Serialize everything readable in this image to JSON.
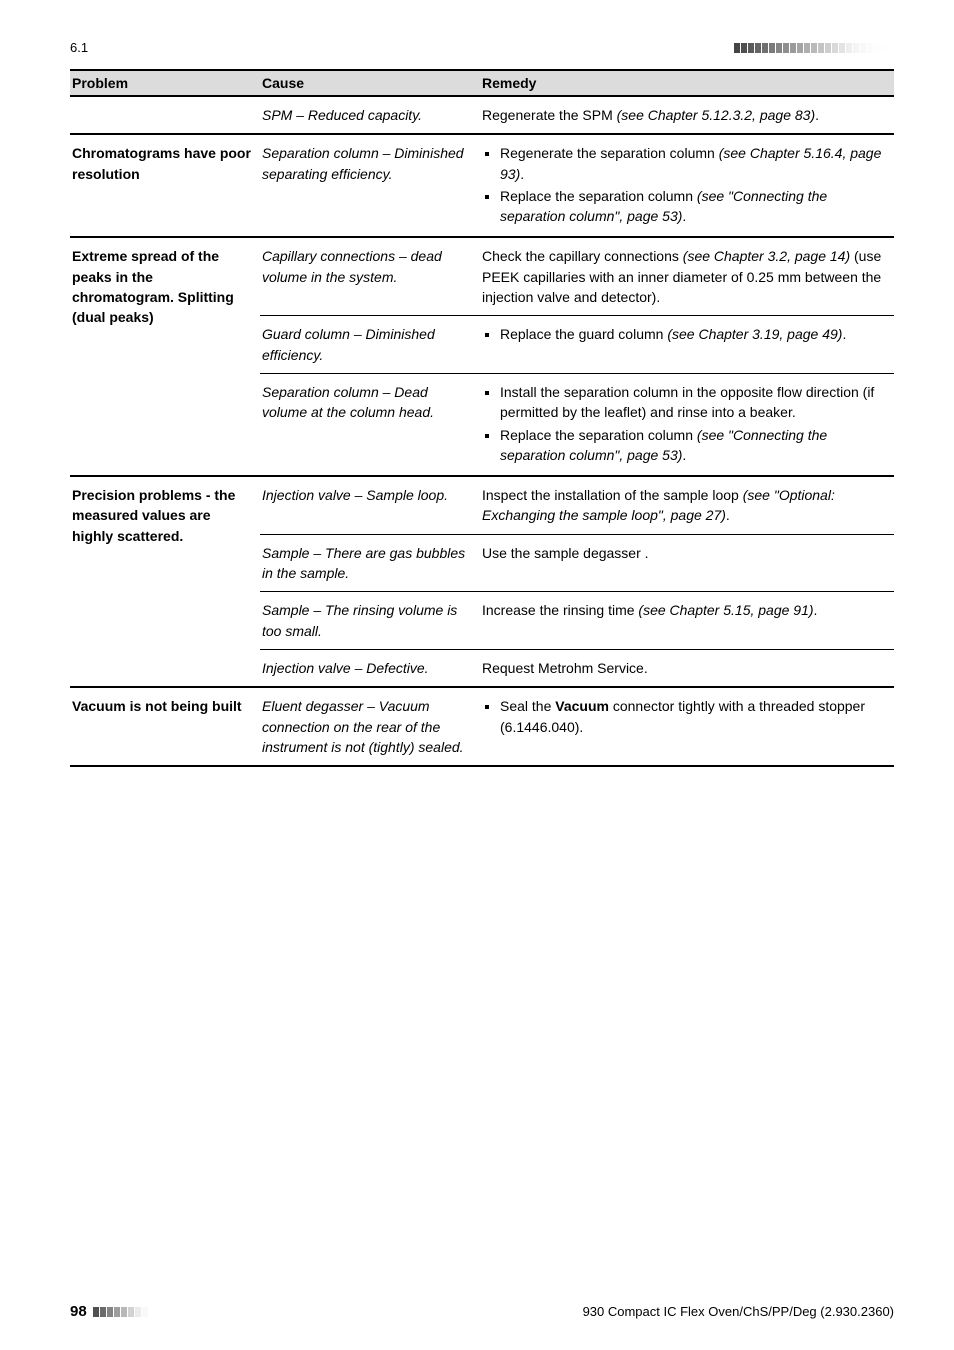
{
  "header": {
    "section": "6.1"
  },
  "table": {
    "headers": [
      "Problem",
      "Cause",
      "Remedy"
    ],
    "groups": [
      {
        "problem": "",
        "rows": [
          {
            "cause": {
              "prefix": "SPM",
              "tail": " – Reduced capacity."
            },
            "remedy": {
              "text": "Regenerate the SPM ",
              "italic": "(see Chapter 5.12.3.2, page 83)",
              "tail": "."
            }
          }
        ]
      },
      {
        "problem": "Chromatograms have poor resolution",
        "rows": [
          {
            "cause": {
              "prefix": "Separation column",
              "tail": " – Diminished separating efficiency."
            },
            "remedy_list": [
              {
                "text": "Regenerate the separation column ",
                "italic": "(see Chapter 5.16.4, page 93)",
                "tail": "."
              },
              {
                "text": "Replace the separation column ",
                "italic": "(see \"Connecting the separation column\", page 53)",
                "tail": "."
              }
            ]
          }
        ]
      },
      {
        "problem": "Extreme spread of the peaks in the chromatogram. Splitting (dual peaks)",
        "rows": [
          {
            "cause": {
              "prefix": "Capillary connections",
              "tail": " – dead volume in the system."
            },
            "remedy": {
              "text": "Check the capillary connections ",
              "italic": "(see Chapter 3.2, page 14)",
              "tail": " (use PEEK capillaries with an inner diameter of 0.25 mm between the injection valve and detector)."
            }
          },
          {
            "sub": true,
            "cause": {
              "prefix": "Guard column",
              "tail": " – Diminished efficiency."
            },
            "remedy_list": [
              {
                "text": "Replace the guard column ",
                "italic": "(see Chapter 3.19, page 49)",
                "tail": "."
              }
            ]
          },
          {
            "sub": true,
            "cause": {
              "prefix": "Separation column",
              "tail": " – Dead volume at the column head."
            },
            "remedy_list": [
              {
                "text": "Install the separation column in the opposite flow direction (if permitted by the leaflet) and rinse into a beaker.",
                "italic": "",
                "tail": ""
              },
              {
                "text": "Replace the separation column ",
                "italic": "(see \"Connecting the separation column\", page 53)",
                "tail": "."
              }
            ]
          }
        ]
      },
      {
        "problem": "Precision problems - the measured values are highly scattered.",
        "rows": [
          {
            "cause": {
              "prefix": "Injection valve",
              "tail": " – Sample loop."
            },
            "remedy": {
              "text": "Inspect the installation of the sample loop ",
              "italic": "(see \"Optional: Exchanging the sample loop\", page 27)",
              "tail": "."
            }
          },
          {
            "sub": true,
            "cause": {
              "prefix": "Sample",
              "tail": " – There are gas bubbles in the sample."
            },
            "remedy": {
              "text": "Use the sample degasser .",
              "italic": "",
              "tail": ""
            }
          },
          {
            "sub": true,
            "cause": {
              "prefix": "Sample",
              "tail": " – The rinsing volume is too small."
            },
            "remedy": {
              "text": "Increase the rinsing time ",
              "italic": "(see Chapter 5.15, page 91)",
              "tail": "."
            }
          },
          {
            "sub": true,
            "cause": {
              "prefix": "Injection valve",
              "tail": " – Defective."
            },
            "remedy": {
              "text": "Request Metrohm Service.",
              "italic": "",
              "tail": ""
            }
          }
        ]
      },
      {
        "problem": "Vacuum is not being built",
        "last": true,
        "rows": [
          {
            "cause": {
              "prefix": "Eluent degasser",
              "tail": " – Vacuum connection on the rear of the instrument is not (tightly) sealed."
            },
            "remedy_list": [
              {
                "text": "Seal the ",
                "bold": "Vacuum",
                "tail": " connector tightly with a threaded stopper (6.1446.040)."
              }
            ]
          }
        ]
      }
    ]
  },
  "footer": {
    "page": "98",
    "right": "930 Compact IC Flex Oven/ChS/PP/Deg (2.930.2360)"
  },
  "styling": {
    "header_bar_colors": [
      "#454545",
      "#4f4f4f",
      "#5a5a5a",
      "#656565",
      "#707070",
      "#7a7a7a",
      "#858585",
      "#8f8f8f",
      "#9a9a9a",
      "#a4a4a4",
      "#afafaf",
      "#b9b9b9",
      "#c4c4c4",
      "#cecece",
      "#d9d9d9",
      "#e3e3e3",
      "#eeeeee",
      "#f4f4f4",
      "#f8f8f8",
      "#fbfbfb",
      "#fdfdfd",
      "#fefefe",
      "#ffffff"
    ],
    "footer_bar_colors": [
      "#505050",
      "#6a6a6a",
      "#848484",
      "#9e9e9e",
      "#b8b8b8",
      "#d2d2d2",
      "#ececec",
      "#f8f8f8"
    ]
  }
}
